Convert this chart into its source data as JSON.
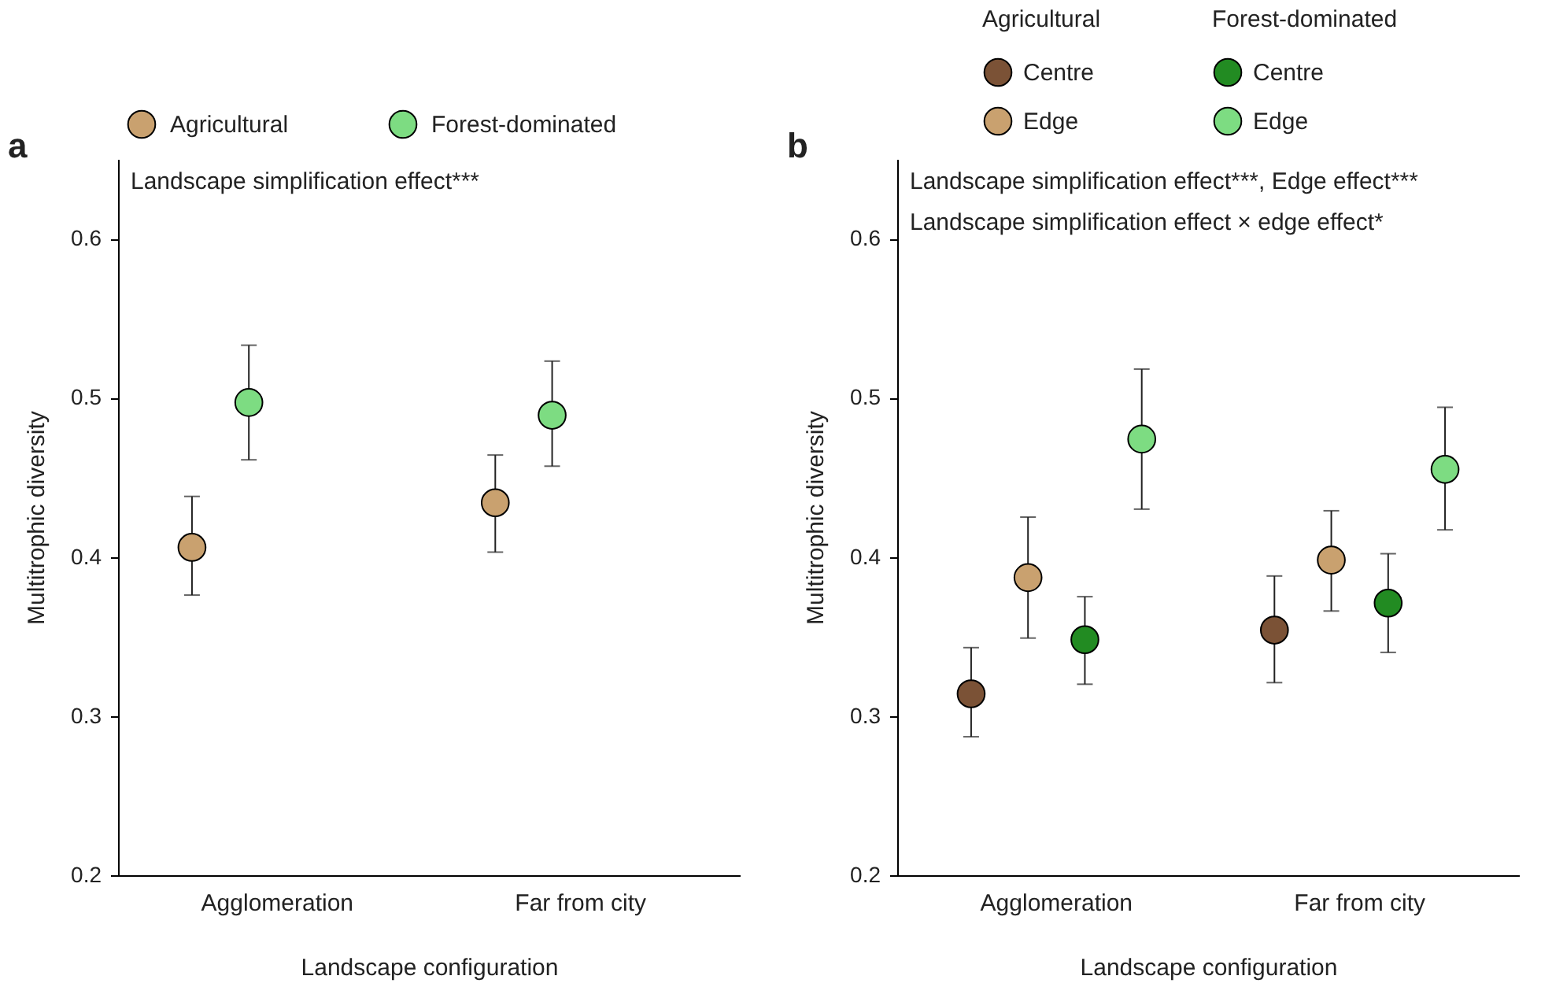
{
  "chart_data": [
    {
      "type": "scatter",
      "title": "a",
      "xlabel": "Landscape configuration",
      "ylabel": "Multitrophic diversity",
      "categories": [
        "Agglomeration",
        "Far from city"
      ],
      "series": [
        {
          "name": "Agricultural",
          "color": "#c9a16f",
          "values": [
            0.406,
            0.434
          ],
          "errors": [
            [
              0.376,
              0.438
            ],
            [
              0.403,
              0.464
            ]
          ]
        },
        {
          "name": "Forest-dominated",
          "color": "#7ddc82",
          "values": [
            0.497,
            0.489
          ],
          "errors": [
            [
              0.461,
              0.533
            ],
            [
              0.457,
              0.523
            ]
          ]
        }
      ],
      "ylim": [
        0.2,
        0.65
      ],
      "yticks": [
        0.2,
        0.3,
        0.4,
        0.5,
        0.6
      ],
      "annotations": [
        "Landscape simplification effect***"
      ],
      "legend": "top",
      "marker": "circle"
    },
    {
      "type": "scatter",
      "title": "b",
      "xlabel": "Landscape configuration",
      "ylabel": "Multitrophic diversity",
      "categories": [
        "Agglomeration",
        "Far from city"
      ],
      "legend_title": [
        "Agricultural",
        "Forest-dominated"
      ],
      "series": [
        {
          "name": "Centre",
          "color": "#7b5236",
          "values": [
            0.314,
            0.354
          ],
          "errors": [
            [
              0.287,
              0.343
            ],
            [
              0.321,
              0.388
            ]
          ]
        },
        {
          "name": "Edge",
          "color": "#c9a16f",
          "values": [
            0.387,
            0.398
          ],
          "errors": [
            [
              0.349,
              0.425
            ],
            [
              0.366,
              0.429
            ]
          ]
        },
        {
          "name": "Centre",
          "color": "#228b22",
          "values": [
            0.348,
            0.371
          ],
          "errors": [
            [
              0.32,
              0.375
            ],
            [
              0.34,
              0.402
            ]
          ]
        },
        {
          "name": "Edge",
          "color": "#7ddc82",
          "values": [
            0.474,
            0.455
          ],
          "errors": [
            [
              0.43,
              0.518
            ],
            [
              0.417,
              0.494
            ]
          ]
        }
      ],
      "ylim": [
        0.2,
        0.65
      ],
      "yticks": [
        0.2,
        0.3,
        0.4,
        0.5,
        0.6
      ],
      "annotations": [
        "Landscape simplification effect***, Edge effect***",
        "Landscape simplification effect × edge effect*"
      ],
      "legend": "top",
      "marker": "circle"
    }
  ]
}
